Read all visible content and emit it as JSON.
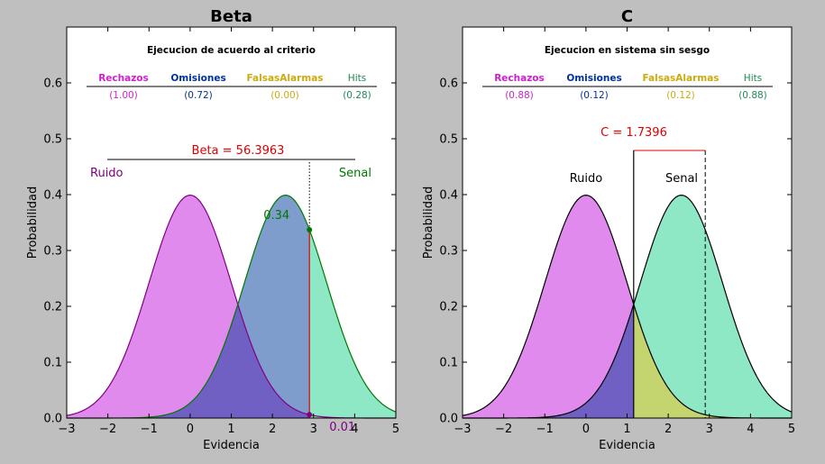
{
  "chart_data": [
    {
      "type": "area",
      "title": "Beta",
      "subtitle": "Ejecucion de acuerdo al criterio",
      "xlabel": "Evidencia",
      "ylabel": "Probabilidad",
      "xlim": [
        -3,
        5
      ],
      "ylim": [
        0,
        0.7
      ],
      "xticks": [
        -3,
        -2,
        -1,
        0,
        1,
        2,
        3,
        4,
        5
      ],
      "yticks": [
        0.0,
        0.1,
        0.2,
        0.3,
        0.4,
        0.5,
        0.6
      ],
      "series": [
        {
          "name": "Ruido",
          "distribution": "normal",
          "mean": 0,
          "sd": 1
        },
        {
          "name": "Senal",
          "distribution": "normal",
          "mean": 2.32,
          "sd": 1
        }
      ],
      "criterion": 2.9,
      "header": [
        {
          "label": "Rechazos",
          "value": "(1.00)",
          "color": "#cc22cc"
        },
        {
          "label": "Omisiones",
          "value": "(0.72)",
          "color": "#003399"
        },
        {
          "label": "FalsasAlarmas",
          "value": "(0.00)",
          "color": "#ccaa11"
        },
        {
          "label": "Hits",
          "value": "(0.28)",
          "color": "#228855"
        }
      ],
      "stat_label": "Beta = 56.3963",
      "point_labels": {
        "signal": "0.34",
        "noise": "0.01"
      },
      "grid": false
    },
    {
      "type": "area",
      "title": "C",
      "subtitle": "Ejecucion en sistema sin sesgo",
      "xlabel": "Evidencia",
      "ylabel": "Probabilidad",
      "xlim": [
        -3,
        5
      ],
      "ylim": [
        0,
        0.7
      ],
      "xticks": [
        -3,
        -2,
        -1,
        0,
        1,
        2,
        3,
        4,
        5
      ],
      "yticks": [
        0.0,
        0.1,
        0.2,
        0.3,
        0.4,
        0.5,
        0.6
      ],
      "series": [
        {
          "name": "Ruido",
          "distribution": "normal",
          "mean": 0,
          "sd": 1
        },
        {
          "name": "Senal",
          "distribution": "normal",
          "mean": 2.32,
          "sd": 1
        }
      ],
      "criterion": 2.9,
      "unbiased_criterion": 1.16,
      "header": [
        {
          "label": "Rechazos",
          "value": "(0.88)",
          "color": "#cc22cc"
        },
        {
          "label": "Omisiones",
          "value": "(0.12)",
          "color": "#003399"
        },
        {
          "label": "FalsasAlarmas",
          "value": "(0.12)",
          "color": "#ccaa11"
        },
        {
          "label": "Hits",
          "value": "(0.88)",
          "color": "#228855"
        }
      ],
      "stat_label": "C = 1.7396",
      "grid": false
    }
  ],
  "colors": {
    "noise_fill": "#e08aee",
    "signal_fill": "#8ee8c6",
    "overlap_fill": "#7060c4",
    "beta_miss_fill": "#7f9dcc",
    "c_fa_fill": "#c4d46e",
    "accent_red": "#dd0000",
    "noise_line": "#800080",
    "signal_line": "#007700"
  }
}
